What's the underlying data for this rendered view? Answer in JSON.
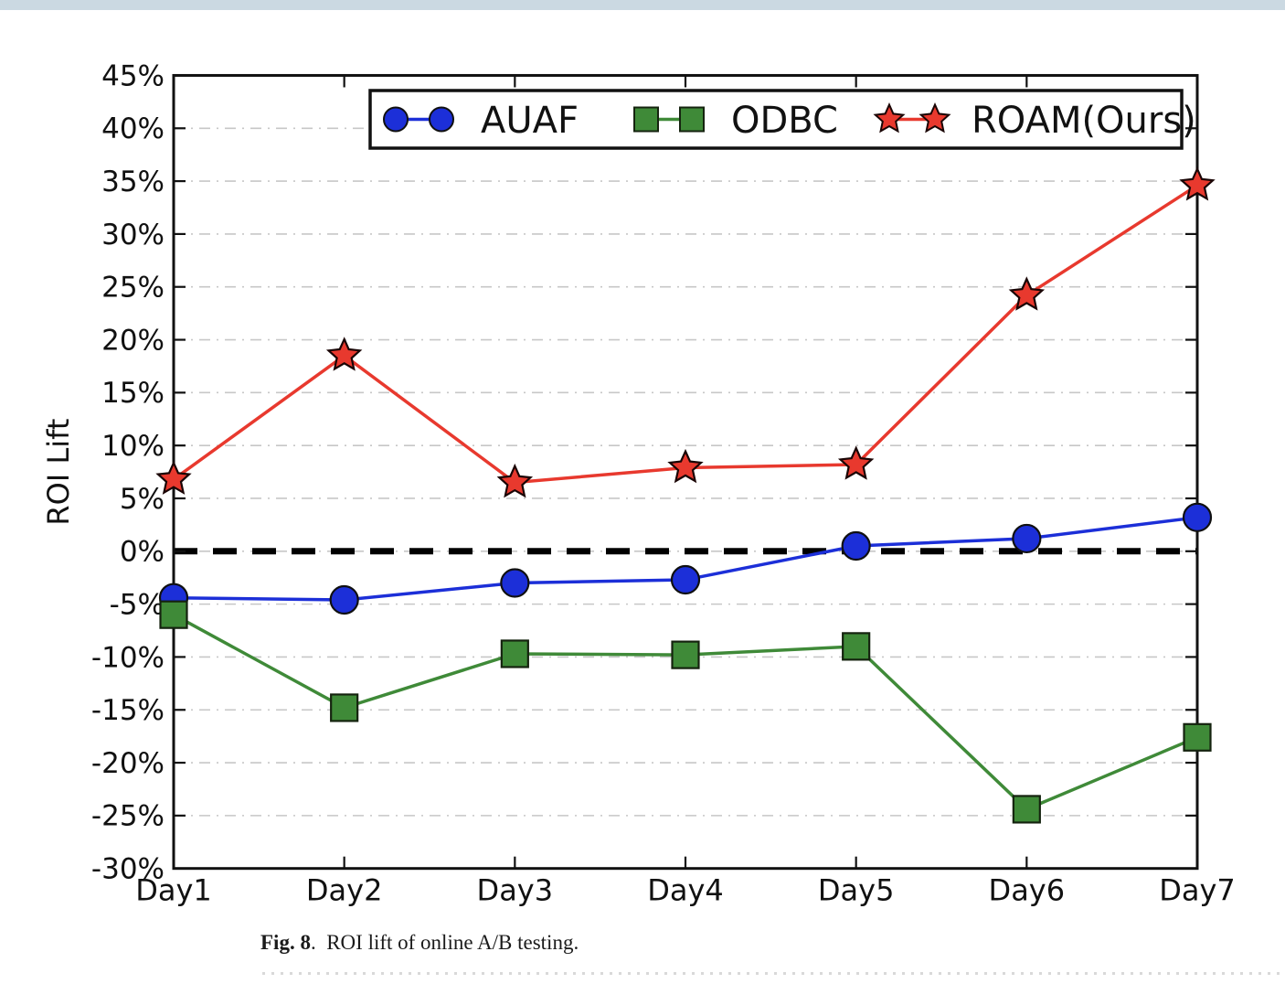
{
  "page": {
    "top_band_color": "#cbd9e2",
    "background_color": "#ffffff",
    "separator_color": "#d9d9d9"
  },
  "caption": {
    "label": "Fig. 8",
    "text": ".  ROI lift of online A/B testing."
  },
  "chart_data": {
    "type": "line",
    "title": "",
    "xlabel": "",
    "ylabel": "ROI Lift",
    "categories": [
      "Day1",
      "Day2",
      "Day3",
      "Day4",
      "Day5",
      "Day6",
      "Day7"
    ],
    "ylim": [
      -30,
      45
    ],
    "ytick_step": 5,
    "ytick_suffix": "%",
    "grid": "horizontal, dash-dot, light gray",
    "zero_line": {
      "style": "dashed",
      "color": "#000000",
      "value": 0
    },
    "legend_position": "upper center, inside plot, boxed",
    "frame_color": "#111111",
    "grid_color": "#c7c7c7",
    "series": [
      {
        "name": "AUAF",
        "marker": "circle",
        "color": "#1c2fd8",
        "edge_color": "#101010",
        "values": [
          -4.4,
          -4.6,
          -3.0,
          -2.7,
          0.5,
          1.2,
          3.2
        ]
      },
      {
        "name": "ODBC",
        "marker": "square",
        "color": "#3f8a38",
        "edge_color": "#15230f",
        "values": [
          -6.0,
          -14.8,
          -9.7,
          -9.8,
          -9.0,
          -24.4,
          -17.6
        ]
      },
      {
        "name": "ROAM(Ours)",
        "marker": "star",
        "color": "#e8392e",
        "edge_color": "#1a0505",
        "values": [
          6.8,
          18.5,
          6.5,
          7.9,
          8.2,
          24.2,
          34.6
        ]
      }
    ]
  }
}
